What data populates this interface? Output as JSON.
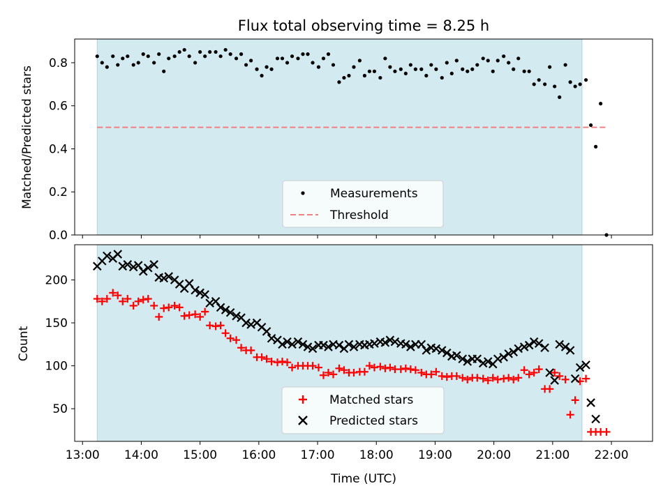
{
  "chart_data": [
    {
      "type": "scatter",
      "title": "Flux total observing time = 8.25 h",
      "ylabel": "Matched/Predicted stars",
      "ylim": [
        0,
        0.91
      ],
      "yticks": [
        "0.0",
        "0.2",
        "0.4",
        "0.6",
        "0.8"
      ],
      "shaded_span": {
        "start": "13:15",
        "end": "21:30",
        "color": "#d3eaf0"
      },
      "threshold": {
        "name": "Threshold",
        "value": 0.5,
        "from": "13:15",
        "to": "21:55",
        "color": "#f08080"
      },
      "legend": {
        "position": "lower center",
        "entries": [
          "Measurements",
          "Threshold"
        ]
      },
      "series": [
        {
          "name": "Measurements",
          "marker": "dot",
          "color": "#000000",
          "x": [
            "13:15",
            "13:20",
            "13:25",
            "13:31",
            "13:36",
            "13:41",
            "13:46",
            "13:52",
            "13:57",
            "14:02",
            "14:07",
            "14:13",
            "14:18",
            "14:23",
            "14:28",
            "14:34",
            "14:39",
            "14:44",
            "14:49",
            "14:55",
            "15:00",
            "15:05",
            "15:10",
            "15:16",
            "15:21",
            "15:26",
            "15:31",
            "15:37",
            "15:42",
            "15:47",
            "15:52",
            "15:58",
            "16:03",
            "16:08",
            "16:13",
            "16:19",
            "16:24",
            "16:29",
            "16:34",
            "16:40",
            "16:45",
            "16:50",
            "16:55",
            "17:01",
            "17:06",
            "17:11",
            "17:16",
            "17:22",
            "17:27",
            "17:32",
            "17:37",
            "17:43",
            "17:48",
            "17:53",
            "17:58",
            "18:04",
            "18:09",
            "18:14",
            "18:19",
            "18:25",
            "18:30",
            "18:35",
            "18:40",
            "18:46",
            "18:51",
            "18:56",
            "19:01",
            "19:07",
            "19:12",
            "19:17",
            "19:22",
            "19:28",
            "19:33",
            "19:38",
            "19:43",
            "19:49",
            "19:54",
            "19:59",
            "20:04",
            "20:10",
            "20:15",
            "20:20",
            "20:25",
            "20:31",
            "20:36",
            "20:41",
            "20:46",
            "20:52",
            "20:57",
            "21:02",
            "21:07",
            "21:13",
            "21:18",
            "21:23",
            "21:28",
            "21:34",
            "21:39",
            "21:44",
            "21:49",
            "21:55"
          ],
          "y": [
            0.83,
            0.8,
            0.78,
            0.83,
            0.79,
            0.82,
            0.83,
            0.79,
            0.8,
            0.84,
            0.83,
            0.8,
            0.84,
            0.76,
            0.82,
            0.83,
            0.85,
            0.86,
            0.83,
            0.8,
            0.85,
            0.83,
            0.85,
            0.85,
            0.83,
            0.86,
            0.84,
            0.82,
            0.84,
            0.79,
            0.81,
            0.77,
            0.74,
            0.78,
            0.77,
            0.82,
            0.82,
            0.8,
            0.83,
            0.82,
            0.84,
            0.84,
            0.8,
            0.78,
            0.82,
            0.84,
            0.79,
            0.71,
            0.73,
            0.74,
            0.78,
            0.81,
            0.74,
            0.76,
            0.76,
            0.73,
            0.82,
            0.78,
            0.76,
            0.77,
            0.75,
            0.79,
            0.77,
            0.77,
            0.74,
            0.79,
            0.77,
            0.73,
            0.8,
            0.75,
            0.81,
            0.77,
            0.76,
            0.77,
            0.79,
            0.82,
            0.81,
            0.76,
            0.81,
            0.83,
            0.8,
            0.77,
            0.82,
            0.76,
            0.76,
            0.7,
            0.72,
            0.7,
            0.78,
            0.69,
            0.64,
            0.79,
            0.71,
            0.69,
            0.7,
            0.72,
            0.51,
            0.41,
            0.61,
            0.0
          ]
        }
      ]
    },
    {
      "type": "scatter",
      "xlabel": "Time (UTC)",
      "ylabel": "Count",
      "xlim": [
        "12:52",
        "22:42"
      ],
      "ylim": [
        12,
        241
      ],
      "xticks": [
        "13:00",
        "14:00",
        "15:00",
        "16:00",
        "17:00",
        "18:00",
        "19:00",
        "20:00",
        "21:00",
        "22:00"
      ],
      "yticks": [
        "50",
        "100",
        "150",
        "200"
      ],
      "shaded_span": {
        "start": "13:15",
        "end": "21:30",
        "color": "#d3eaf0"
      },
      "legend": {
        "position": "lower center",
        "entries": [
          "Matched stars",
          "Predicted stars"
        ]
      },
      "series": [
        {
          "name": "Matched stars",
          "marker": "plus",
          "color": "#ff0000",
          "x": [
            "13:15",
            "13:20",
            "13:25",
            "13:31",
            "13:36",
            "13:41",
            "13:46",
            "13:52",
            "13:57",
            "14:02",
            "14:07",
            "14:13",
            "14:18",
            "14:23",
            "14:28",
            "14:34",
            "14:39",
            "14:44",
            "14:49",
            "14:55",
            "15:00",
            "15:05",
            "15:10",
            "15:16",
            "15:21",
            "15:26",
            "15:31",
            "15:37",
            "15:42",
            "15:47",
            "15:52",
            "15:58",
            "16:03",
            "16:08",
            "16:13",
            "16:19",
            "16:24",
            "16:29",
            "16:34",
            "16:40",
            "16:45",
            "16:50",
            "16:55",
            "17:01",
            "17:06",
            "17:11",
            "17:16",
            "17:22",
            "17:27",
            "17:32",
            "17:37",
            "17:43",
            "17:48",
            "17:53",
            "17:58",
            "18:04",
            "18:09",
            "18:14",
            "18:19",
            "18:25",
            "18:30",
            "18:35",
            "18:40",
            "18:46",
            "18:51",
            "18:56",
            "19:01",
            "19:07",
            "19:12",
            "19:17",
            "19:22",
            "19:28",
            "19:33",
            "19:38",
            "19:43",
            "19:49",
            "19:54",
            "19:59",
            "20:04",
            "20:10",
            "20:15",
            "20:20",
            "20:25",
            "20:31",
            "20:36",
            "20:41",
            "20:46",
            "20:52",
            "20:57",
            "21:02",
            "21:07",
            "21:13",
            "21:18",
            "21:23",
            "21:28",
            "21:34",
            "21:39",
            "21:44",
            "21:49",
            "21:55"
          ],
          "y": [
            178,
            175,
            178,
            185,
            182,
            175,
            178,
            170,
            175,
            177,
            178,
            170,
            157,
            167,
            168,
            170,
            168,
            158,
            159,
            160,
            157,
            163,
            147,
            146,
            147,
            138,
            132,
            130,
            121,
            118,
            118,
            110,
            110,
            108,
            105,
            104,
            105,
            104,
            98,
            100,
            100,
            100,
            100,
            98,
            89,
            92,
            90,
            97,
            95,
            92,
            92,
            93,
            93,
            100,
            98,
            99,
            97,
            98,
            96,
            96,
            97,
            96,
            95,
            92,
            90,
            90,
            93,
            88,
            87,
            88,
            88,
            86,
            84,
            86,
            86,
            85,
            83,
            86,
            84,
            85,
            86,
            84,
            86,
            95,
            90,
            92,
            96,
            73,
            73,
            92,
            88,
            84,
            43,
            60,
            82,
            85,
            23,
            23,
            23,
            23
          ]
        },
        {
          "name": "Predicted stars",
          "marker": "x",
          "color": "#000000",
          "x": [
            "13:15",
            "13:20",
            "13:25",
            "13:31",
            "13:36",
            "13:41",
            "13:46",
            "13:52",
            "13:57",
            "14:02",
            "14:07",
            "14:13",
            "14:18",
            "14:23",
            "14:28",
            "14:34",
            "14:39",
            "14:44",
            "14:49",
            "14:55",
            "15:00",
            "15:05",
            "15:10",
            "15:16",
            "15:21",
            "15:26",
            "15:31",
            "15:37",
            "15:42",
            "15:47",
            "15:52",
            "15:58",
            "16:03",
            "16:08",
            "16:13",
            "16:19",
            "16:24",
            "16:29",
            "16:34",
            "16:40",
            "16:45",
            "16:50",
            "16:55",
            "17:01",
            "17:06",
            "17:11",
            "17:16",
            "17:22",
            "17:27",
            "17:32",
            "17:37",
            "17:43",
            "17:48",
            "17:53",
            "17:58",
            "18:04",
            "18:09",
            "18:14",
            "18:19",
            "18:25",
            "18:30",
            "18:35",
            "18:40",
            "18:46",
            "18:51",
            "18:56",
            "19:01",
            "19:07",
            "19:12",
            "19:17",
            "19:22",
            "19:28",
            "19:33",
            "19:38",
            "19:43",
            "19:49",
            "19:54",
            "19:59",
            "20:04",
            "20:10",
            "20:15",
            "20:20",
            "20:25",
            "20:31",
            "20:36",
            "20:41",
            "20:46",
            "20:52",
            "20:57",
            "21:02",
            "21:07",
            "21:13",
            "21:18",
            "21:23",
            "21:28",
            "21:34",
            "21:39",
            "21:44"
          ],
          "y": [
            216,
            222,
            228,
            225,
            230,
            216,
            218,
            215,
            217,
            210,
            214,
            218,
            203,
            202,
            204,
            200,
            195,
            190,
            196,
            188,
            185,
            183,
            173,
            175,
            168,
            165,
            162,
            158,
            156,
            150,
            148,
            150,
            145,
            140,
            132,
            130,
            125,
            128,
            125,
            128,
            125,
            122,
            120,
            124,
            124,
            122,
            125,
            124,
            120,
            125,
            122,
            125,
            124,
            125,
            126,
            128,
            127,
            130,
            128,
            126,
            125,
            122,
            125,
            125,
            118,
            121,
            120,
            118,
            115,
            111,
            112,
            108,
            105,
            108,
            108,
            103,
            105,
            102,
            108,
            110,
            114,
            116,
            120,
            122,
            124,
            128,
            126,
            121,
            92,
            83,
            125,
            122,
            118,
            85,
            98,
            101,
            57,
            38
          ]
        }
      ]
    }
  ]
}
